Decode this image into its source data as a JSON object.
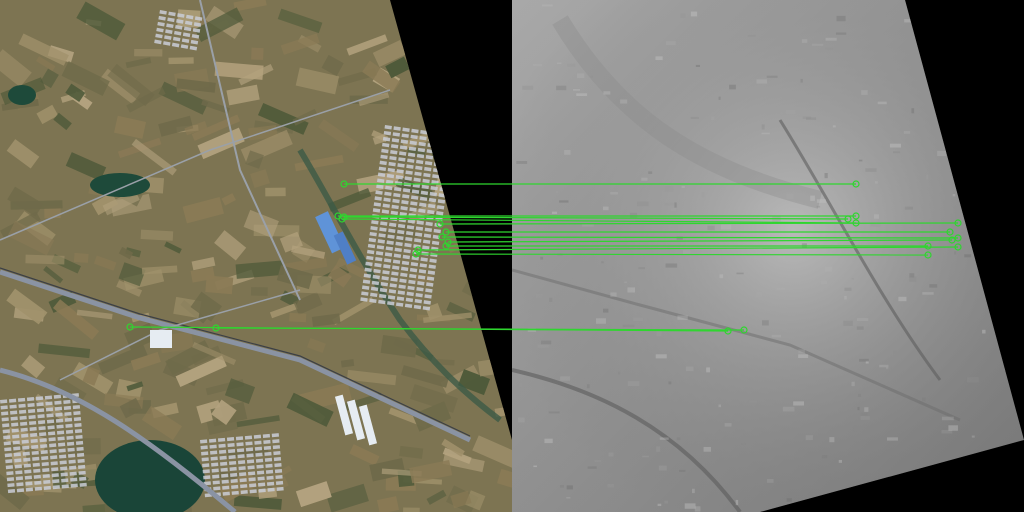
{
  "left_panel": {
    "kind": "optical satellite image",
    "palette": {
      "field_a": "#8a7a55",
      "field_b": "#a0916b",
      "field_c": "#6f6a4a",
      "field_d": "#4f5a3a",
      "field_e": "#b3a27e",
      "water": "#1f4a3c",
      "road": "#6d7480",
      "highway": "#7e8796",
      "urban": "#c9ccd6",
      "roof_blue": "#5a8fd6"
    }
  },
  "right_panel": {
    "kind": "grayscale elevation raster",
    "palette": {
      "light": "#c4c4c4",
      "mid": "#9a9a9a",
      "dark": "#6a6a6a"
    }
  },
  "matches": {
    "color": "#2fd62f",
    "count": 13
  }
}
